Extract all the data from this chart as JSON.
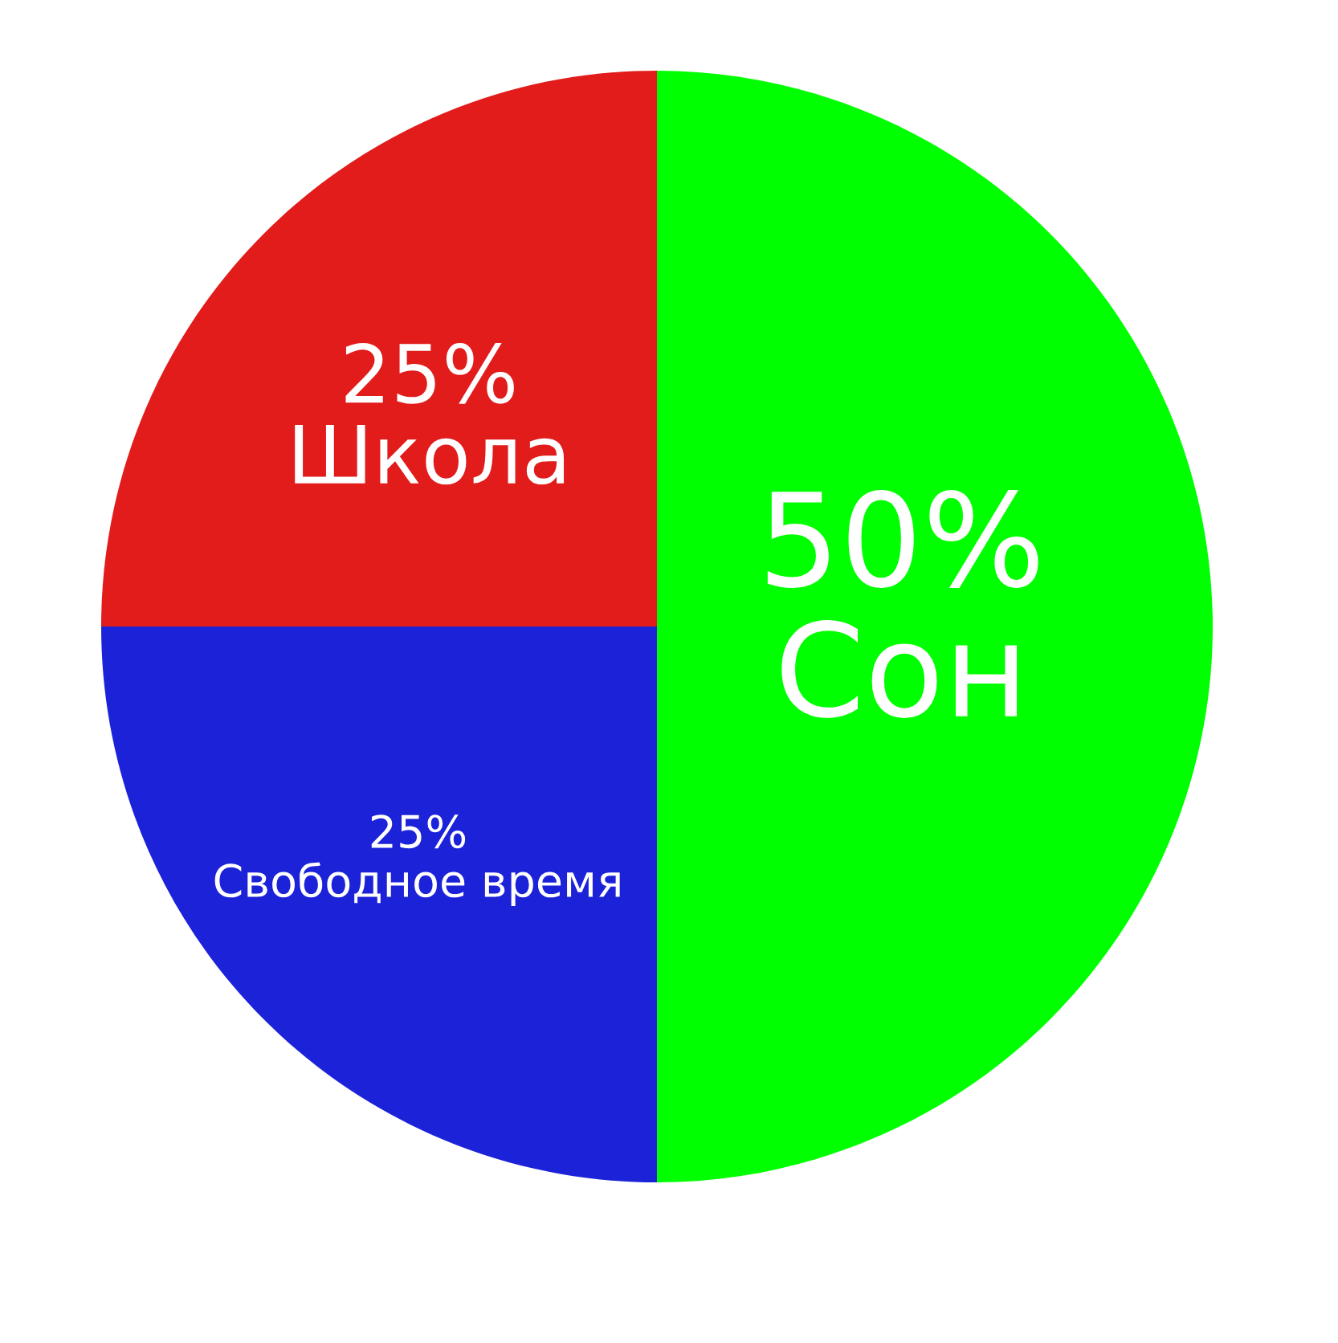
{
  "chart_data": {
    "type": "pie",
    "categories": [
      "Сон",
      "Свободное время",
      "Школа"
    ],
    "values": [
      50,
      25,
      25
    ],
    "value_labels": [
      "50%",
      "25%",
      "25%"
    ],
    "colors": [
      "#00ff00",
      "#1c22d8",
      "#e21b1b"
    ],
    "legend": false
  }
}
